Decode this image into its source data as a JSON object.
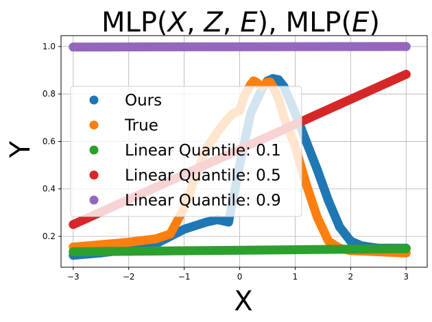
{
  "chart_data": {
    "type": "scatter",
    "title": "MLP(X, Z, E), MLP(E)",
    "title_parts": [
      {
        "text": "MLP(",
        "italic": false
      },
      {
        "text": "X",
        "italic": true
      },
      {
        "text": ", ",
        "italic": false
      },
      {
        "text": "Z",
        "italic": true
      },
      {
        "text": ", ",
        "italic": false
      },
      {
        "text": "E",
        "italic": true
      },
      {
        "text": "), MLP(",
        "italic": false
      },
      {
        "text": "E",
        "italic": true
      },
      {
        "text": ")",
        "italic": false
      }
    ],
    "xlabel": "X",
    "ylabel": "Y",
    "xlim": [
      -3.22,
      3.38
    ],
    "ylim": [
      0.07,
      1.046
    ],
    "xticks": [
      -3,
      -2,
      -1,
      0,
      1,
      2,
      3
    ],
    "xtick_labels": [
      "−3",
      "−2",
      "−1",
      "0",
      "1",
      "2",
      "3"
    ],
    "yticks": [
      0.2,
      0.4,
      0.6,
      0.8,
      1.0
    ],
    "ytick_labels": [
      "0.2",
      "0.4",
      "0.6",
      "0.8",
      "1.0"
    ],
    "grid": true,
    "legend_position": "center-left",
    "series": [
      {
        "name": "Ours",
        "color": "#1f77b4",
        "x": [
          -3.0,
          -2.5,
          -2.0,
          -1.5,
          -1.0,
          -0.6,
          -0.4,
          -0.2,
          0.0,
          0.2,
          0.4,
          0.5,
          0.6,
          0.7,
          0.8,
          1.0,
          1.2,
          1.4,
          1.6,
          1.8,
          2.0,
          2.2,
          2.5,
          3.0
        ],
        "y": [
          0.12,
          0.13,
          0.145,
          0.17,
          0.23,
          0.26,
          0.27,
          0.26,
          0.5,
          0.72,
          0.82,
          0.855,
          0.865,
          0.86,
          0.83,
          0.72,
          0.6,
          0.48,
          0.35,
          0.24,
          0.18,
          0.16,
          0.15,
          0.15
        ]
      },
      {
        "name": "True",
        "color": "#ff7f0e",
        "x": [
          -3.0,
          -2.5,
          -2.0,
          -1.5,
          -1.25,
          -1.0,
          -0.8,
          -0.6,
          -0.4,
          -0.2,
          -0.1,
          0.0,
          0.1,
          0.2,
          0.25,
          0.3,
          0.4,
          0.5,
          0.55,
          0.6,
          0.7,
          0.8,
          1.0,
          1.2,
          1.4,
          1.6,
          1.8,
          2.0,
          2.5,
          3.0
        ],
        "y": [
          0.155,
          0.165,
          0.175,
          0.19,
          0.21,
          0.32,
          0.45,
          0.57,
          0.64,
          0.7,
          0.72,
          0.73,
          0.8,
          0.84,
          0.855,
          0.85,
          0.83,
          0.85,
          0.85,
          0.83,
          0.78,
          0.7,
          0.58,
          0.42,
          0.28,
          0.18,
          0.15,
          0.14,
          0.135,
          0.13
        ]
      },
      {
        "name": "Linear Quantile: 0.1",
        "color": "#2ca02c",
        "x": [
          -3.0,
          3.0
        ],
        "y": [
          0.135,
          0.148
        ]
      },
      {
        "name": "Linear Quantile: 0.5",
        "color": "#d62728",
        "x": [
          -3.0,
          3.0
        ],
        "y": [
          0.25,
          0.883
        ]
      },
      {
        "name": "Linear Quantile: 0.9",
        "color": "#9467bd",
        "x": [
          -3.0,
          3.0
        ],
        "y": [
          0.998,
          1.0
        ]
      }
    ]
  }
}
